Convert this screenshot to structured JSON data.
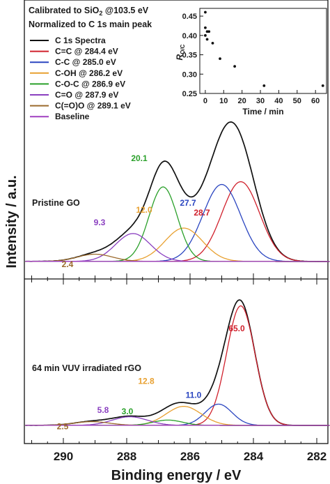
{
  "header": {
    "line1_a": "Calibrated to SiO",
    "line1_sub": "2",
    "line1_b": " @103.5 eV",
    "line2": "Normalized to C 1s main peak"
  },
  "legend": {
    "items": [
      {
        "label": "C 1s Spectra",
        "color": "#111111"
      },
      {
        "label": "C=C @ 284.4 eV",
        "color": "#d0202c"
      },
      {
        "label": "C-C @ 285.0 eV",
        "color": "#2a45c0"
      },
      {
        "label": "C-OH @ 286.2 eV",
        "color": "#e8a030"
      },
      {
        "label": "C-O-C @ 286.9 eV",
        "color": "#2aa02a"
      },
      {
        "label": "C=O @ 287.9 eV",
        "color": "#8a3fc0"
      },
      {
        "label": "C(=O)O @ 289.1 eV",
        "color": "#9b6a2c"
      },
      {
        "label": "Baseline",
        "color": "#a040c0"
      }
    ]
  },
  "y_axis": {
    "label": "Intensity / a.u."
  },
  "x_axis": {
    "label": "Binding energy / eV",
    "ticks": [
      "290",
      "288",
      "286",
      "284",
      "282"
    ]
  },
  "panels": {
    "top": {
      "label": "Pristine GO"
    },
    "bottom": {
      "label": "64 min VUV irradiated rGO"
    }
  },
  "inset": {
    "ylabel_main": "R",
    "ylabel_sub": "O/C",
    "xlabel": "Time / min",
    "yticks": [
      "0.45",
      "0.40",
      "0.35",
      "0.30",
      "0.25"
    ],
    "xticks": [
      "0",
      "10",
      "20",
      "30",
      "40",
      "50",
      "60"
    ]
  },
  "chart_data": [
    {
      "type": "line",
      "title": "",
      "xlabel": "Binding energy / eV",
      "ylabel": "Intensity / a.u.",
      "xlim": [
        291.2,
        281.6
      ],
      "x_reversed": true,
      "panel": "Pristine GO",
      "series": [
        {
          "name": "C 1s Spectra",
          "component": "spectrum",
          "color": "#111111"
        },
        {
          "name": "C=C @ 284.4 eV",
          "center": 284.4,
          "fwhm": 1.4,
          "area_pct": 28.7,
          "color": "#d0202c"
        },
        {
          "name": "C-C @ 285.0 eV",
          "center": 285.0,
          "fwhm": 1.4,
          "area_pct": 27.7,
          "color": "#2a45c0"
        },
        {
          "name": "C-OH @ 286.2 eV",
          "center": 286.2,
          "fwhm": 1.4,
          "area_pct": 12.0,
          "color": "#e8a030"
        },
        {
          "name": "C-O-C @ 286.9 eV",
          "center": 286.85,
          "fwhm": 1.05,
          "area_pct": 20.1,
          "color": "#2aa02a"
        },
        {
          "name": "C=O @ 287.9 eV",
          "center": 287.8,
          "fwhm": 1.3,
          "area_pct": 9.3,
          "color": "#8a3fc0"
        },
        {
          "name": "C(=O)O @ 289.1 eV",
          "center": 289.0,
          "fwhm": 1.3,
          "area_pct": 2.4,
          "color": "#9b6a2c"
        },
        {
          "name": "Baseline",
          "component": "baseline",
          "color": "#a040c0"
        }
      ],
      "peak_labels": [
        {
          "text": "28.7",
          "color": "#d0202c"
        },
        {
          "text": "27.7",
          "color": "#2a45c0"
        },
        {
          "text": "12.0",
          "color": "#e8a030"
        },
        {
          "text": "20.1",
          "color": "#2aa02a"
        },
        {
          "text": "9.3",
          "color": "#8a3fc0"
        },
        {
          "text": "2.4",
          "color": "#9b6a2c"
        }
      ]
    },
    {
      "type": "line",
      "title": "",
      "xlabel": "Binding energy / eV",
      "ylabel": "Intensity / a.u.",
      "xlim": [
        291.2,
        281.6
      ],
      "x_reversed": true,
      "panel": "64 min VUV irradiated rGO",
      "series": [
        {
          "name": "C 1s Spectra",
          "component": "spectrum",
          "color": "#111111"
        },
        {
          "name": "C=C @ 284.4 eV",
          "center": 284.4,
          "fwhm": 1.05,
          "area_pct": 65.0,
          "color": "#d0202c"
        },
        {
          "name": "C-C @ 285.0 eV",
          "center": 285.1,
          "fwhm": 1.0,
          "area_pct": 11.0,
          "color": "#2a45c0"
        },
        {
          "name": "C-OH @ 286.2 eV",
          "center": 286.2,
          "fwhm": 1.3,
          "area_pct": 12.8,
          "color": "#e8a030"
        },
        {
          "name": "C-O-C @ 286.9 eV",
          "center": 286.7,
          "fwhm": 1.1,
          "area_pct": 3.0,
          "color": "#2aa02a"
        },
        {
          "name": "C=O @ 287.9 eV",
          "center": 287.9,
          "fwhm": 1.3,
          "area_pct": 5.8,
          "color": "#8a3fc0"
        },
        {
          "name": "C(=O)O @ 289.1 eV",
          "center": 289.1,
          "fwhm": 1.3,
          "area_pct": 2.5,
          "color": "#9b6a2c"
        },
        {
          "name": "Baseline",
          "component": "baseline",
          "color": "#a040c0"
        }
      ],
      "peak_labels": [
        {
          "text": "65.0",
          "color": "#d0202c"
        },
        {
          "text": "11.0",
          "color": "#2a45c0"
        },
        {
          "text": "12.8",
          "color": "#e8a030"
        },
        {
          "text": "3.0",
          "color": "#2aa02a"
        },
        {
          "text": "5.8",
          "color": "#8a3fc0"
        },
        {
          "text": "2.5",
          "color": "#9b6a2c"
        }
      ]
    },
    {
      "type": "scatter",
      "title": "",
      "xlabel": "Time / min",
      "ylabel": "R O/C",
      "xlim": [
        -3,
        66
      ],
      "ylim": [
        0.25,
        0.47
      ],
      "points": [
        {
          "x": 0,
          "y": 0.46
        },
        {
          "x": 0,
          "y": 0.42
        },
        {
          "x": 0,
          "y": 0.4
        },
        {
          "x": 1,
          "y": 0.41
        },
        {
          "x": 1,
          "y": 0.39
        },
        {
          "x": 2,
          "y": 0.41
        },
        {
          "x": 4,
          "y": 0.38
        },
        {
          "x": 8,
          "y": 0.34
        },
        {
          "x": 16,
          "y": 0.32
        },
        {
          "x": 32,
          "y": 0.27
        },
        {
          "x": 64,
          "y": 0.27
        }
      ]
    }
  ]
}
